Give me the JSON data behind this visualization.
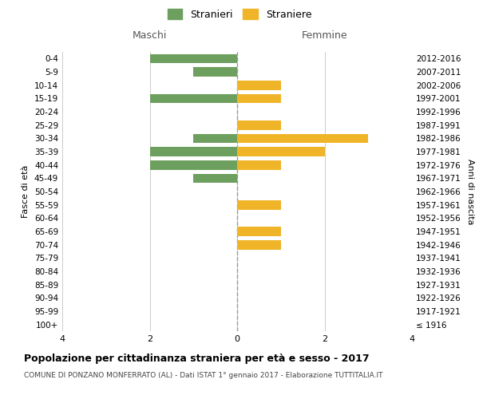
{
  "age_groups": [
    "100+",
    "95-99",
    "90-94",
    "85-89",
    "80-84",
    "75-79",
    "70-74",
    "65-69",
    "60-64",
    "55-59",
    "50-54",
    "45-49",
    "40-44",
    "35-39",
    "30-34",
    "25-29",
    "20-24",
    "15-19",
    "10-14",
    "5-9",
    "0-4"
  ],
  "birth_years": [
    "≤ 1916",
    "1917-1921",
    "1922-1926",
    "1927-1931",
    "1932-1936",
    "1937-1941",
    "1942-1946",
    "1947-1951",
    "1952-1956",
    "1957-1961",
    "1962-1966",
    "1967-1971",
    "1972-1976",
    "1977-1981",
    "1982-1986",
    "1987-1991",
    "1992-1996",
    "1997-2001",
    "2002-2006",
    "2007-2011",
    "2012-2016"
  ],
  "maschi": [
    0,
    0,
    0,
    0,
    0,
    0,
    0,
    0,
    0,
    0,
    0,
    1,
    2,
    2,
    1,
    0,
    0,
    2,
    0,
    1,
    2
  ],
  "femmine": [
    0,
    0,
    0,
    0,
    0,
    0,
    1,
    1,
    0,
    1,
    0,
    0,
    1,
    2,
    3,
    1,
    0,
    1,
    1,
    0,
    0
  ],
  "maschi_color": "#6d9f5e",
  "femmine_color": "#f0b429",
  "title": "Popolazione per cittadinanza straniera per età e sesso - 2017",
  "subtitle": "COMUNE DI PONZANO MONFERRATO (AL) - Dati ISTAT 1° gennaio 2017 - Elaborazione TUTTITALIA.IT",
  "ylabel_left": "Fasce di età",
  "ylabel_right": "Anni di nascita",
  "xlabel_left": "Maschi",
  "xlabel_top_right": "Femmine",
  "legend_stranieri": "Stranieri",
  "legend_straniere": "Straniere",
  "xlim": 4,
  "background_color": "#ffffff",
  "grid_color": "#cccccc"
}
